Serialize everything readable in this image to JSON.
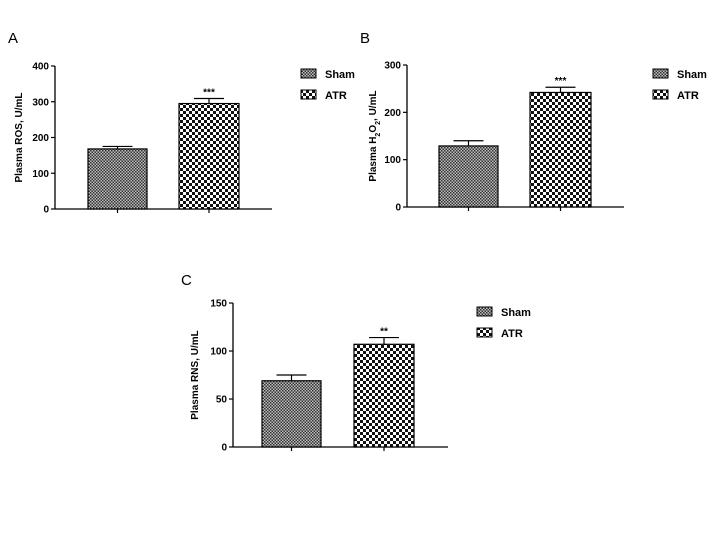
{
  "chart_data": [
    {
      "panel": "A",
      "type": "bar",
      "categories": [
        "Sham",
        "ATR"
      ],
      "values": [
        168,
        295
      ],
      "errors": [
        7,
        14
      ],
      "significance": [
        "",
        "***"
      ],
      "ylabel": "Plasma ROS, U/mL",
      "ylim": [
        0,
        400
      ],
      "yticks": [
        0,
        100,
        200,
        300,
        400
      ],
      "legend": [
        "Sham",
        "ATR"
      ],
      "legend_position": "right"
    },
    {
      "panel": "B",
      "type": "bar",
      "categories": [
        "Sham",
        "ATR"
      ],
      "values": [
        129,
        242
      ],
      "errors": [
        11,
        11
      ],
      "significance": [
        "",
        "***"
      ],
      "ylabel": "Plasma H2O2, U/mL",
      "ylim": [
        0,
        300
      ],
      "yticks": [
        0,
        100,
        200,
        300
      ],
      "legend": [
        "Sham",
        "ATR"
      ],
      "legend_position": "right"
    },
    {
      "panel": "C",
      "type": "bar",
      "categories": [
        "Sham",
        "ATR"
      ],
      "values": [
        69,
        107
      ],
      "errors": [
        6,
        7
      ],
      "significance": [
        "",
        "**"
      ],
      "ylabel": "Plasma RNS, U/mL",
      "ylim": [
        0,
        150
      ],
      "yticks": [
        0,
        50,
        100,
        150
      ],
      "legend": [
        "Sham",
        "ATR"
      ],
      "legend_position": "right"
    }
  ]
}
